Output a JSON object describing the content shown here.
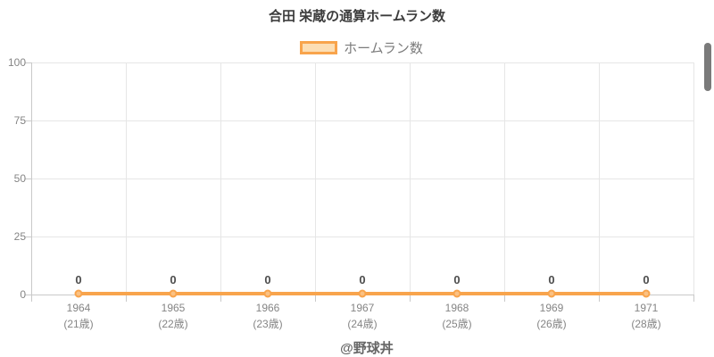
{
  "title": "合田 栄蔵の通算ホームラン数",
  "legend": {
    "label": "ホームラン数"
  },
  "footer": "@野球丼",
  "colors": {
    "line": "#f8a44c",
    "point_fill": "#fbc183",
    "legend_fill": "#fcdeb4",
    "grid": "#e6e6e6",
    "axis_line": "#c9c9c9",
    "tick_text": "#858585",
    "data_label": "#4d4d4d",
    "title_text": "#3c3c3c",
    "legend_text": "#7b7b7b",
    "footer_text": "#666666",
    "scrollbar": "#7a7a7a"
  },
  "chart_data": {
    "type": "line",
    "title": "合田 栄蔵の通算ホームラン数",
    "x": [
      "1964",
      "1965",
      "1966",
      "1967",
      "1968",
      "1969",
      "1971"
    ],
    "x_sub": [
      "(21歳)",
      "(22歳)",
      "(23歳)",
      "(24歳)",
      "(25歳)",
      "(26歳)",
      "(28歳)"
    ],
    "series": [
      {
        "name": "ホームラン数",
        "values": [
          0,
          0,
          0,
          0,
          0,
          0,
          0
        ]
      }
    ],
    "data_labels": [
      "0",
      "0",
      "0",
      "0",
      "0",
      "0",
      "0"
    ],
    "ylim": [
      0,
      100
    ],
    "yticks": [
      0,
      25,
      50,
      75,
      100
    ],
    "grid": true,
    "legend_position": "top"
  }
}
